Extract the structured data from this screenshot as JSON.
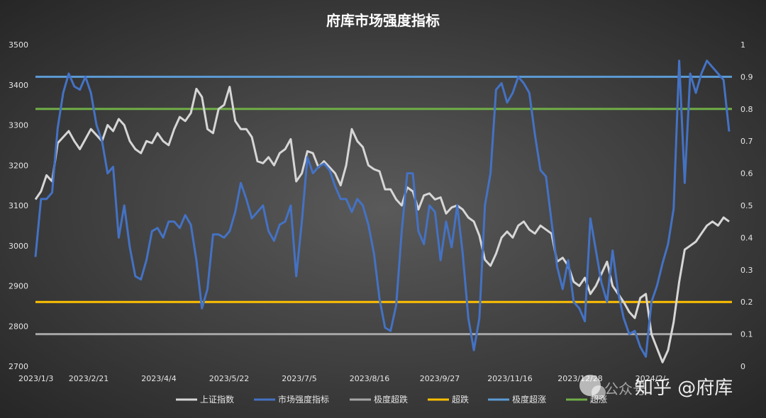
{
  "chart_data": {
    "type": "line",
    "title": "府库市场强度指标",
    "x_tick_labels": [
      "2023/1/3",
      "2023/2/21",
      "2023/4/4",
      "2023/5/22",
      "2023/7/5",
      "2023/8/16",
      "2023/9/27",
      "2023/11/16",
      "2023/12/28",
      "2024/2/"
    ],
    "y_left": {
      "min": 2700,
      "max": 3500,
      "ticks": [
        2700,
        2800,
        2900,
        3000,
        3100,
        3200,
        3300,
        3400,
        3500
      ]
    },
    "y_right": {
      "min": 0,
      "max": 1,
      "ticks": [
        "0",
        "0.1",
        "0.2",
        "0.3",
        "0.4",
        "0.5",
        "0.6",
        "0.7",
        "0.8",
        "0.9",
        "1"
      ]
    },
    "series": [
      {
        "name": "上证指数",
        "axis": "left",
        "color": "#d6d6d6",
        "x": [
          0,
          2,
          4,
          6,
          8,
          10,
          12,
          14,
          16,
          18,
          20,
          22,
          24,
          26,
          28,
          30,
          32,
          34,
          36,
          38,
          40,
          42,
          44,
          46,
          48,
          50,
          52,
          54,
          56,
          58,
          60,
          62,
          64,
          66,
          68,
          70,
          72,
          74,
          76,
          78,
          80,
          82,
          84,
          86,
          88,
          90,
          92,
          94,
          96,
          98,
          100,
          102,
          104,
          106,
          108,
          110,
          112,
          114,
          116,
          118,
          120,
          122,
          124,
          126,
          128,
          130,
          132,
          134,
          136,
          138,
          140,
          142,
          144,
          146,
          148,
          150,
          152,
          154,
          156,
          158,
          160,
          162,
          164,
          166,
          168,
          170,
          172,
          174,
          176,
          178,
          180,
          182,
          184,
          186,
          188,
          190,
          192,
          194,
          196,
          198,
          200,
          202,
          204,
          206,
          208,
          210,
          212,
          214,
          216,
          218,
          220,
          222,
          224,
          226,
          228,
          230,
          232,
          234,
          236,
          238,
          240,
          242,
          244,
          246,
          248,
          250
        ],
        "values": [
          3115,
          3135,
          3175,
          3160,
          3255,
          3270,
          3285,
          3260,
          3240,
          3265,
          3290,
          3275,
          3260,
          3300,
          3285,
          3315,
          3300,
          3260,
          3240,
          3230,
          3260,
          3255,
          3280,
          3260,
          3250,
          3290,
          3320,
          3310,
          3330,
          3390,
          3370,
          3290,
          3280,
          3340,
          3350,
          3395,
          3310,
          3290,
          3290,
          3270,
          3210,
          3205,
          3220,
          3200,
          3230,
          3240,
          3265,
          3160,
          3180,
          3235,
          3230,
          3195,
          3210,
          3195,
          3180,
          3150,
          3200,
          3290,
          3260,
          3245,
          3200,
          3190,
          3185,
          3140,
          3140,
          3115,
          3100,
          3145,
          3135,
          3090,
          3125,
          3130,
          3115,
          3120,
          3080,
          3095,
          3100,
          3090,
          3070,
          3060,
          3025,
          2965,
          2950,
          2980,
          3020,
          3035,
          3020,
          3050,
          3060,
          3040,
          3030,
          3050,
          3040,
          3030,
          2960,
          2970,
          2950,
          2910,
          2900,
          2920,
          2880,
          2900,
          2930,
          2960,
          2900,
          2880,
          2860,
          2835,
          2820,
          2870,
          2880,
          2780,
          2745,
          2710,
          2740,
          2810,
          2910,
          2990,
          3000,
          3010,
          3030,
          3050,
          3060,
          3050,
          3070,
          3060
        ],
        "shown_by_line": true
      },
      {
        "name": "市场强度指标",
        "axis": "right",
        "color": "#4472c4",
        "x": [
          0,
          2,
          4,
          6,
          8,
          10,
          12,
          14,
          16,
          18,
          20,
          22,
          24,
          26,
          28,
          30,
          32,
          34,
          36,
          38,
          40,
          42,
          44,
          46,
          48,
          50,
          52,
          54,
          56,
          58,
          60,
          62,
          64,
          66,
          68,
          70,
          72,
          74,
          76,
          78,
          80,
          82,
          84,
          86,
          88,
          90,
          92,
          94,
          96,
          98,
          100,
          102,
          104,
          106,
          108,
          110,
          112,
          114,
          116,
          118,
          120,
          122,
          124,
          126,
          128,
          130,
          132,
          134,
          136,
          138,
          140,
          142,
          144,
          146,
          148,
          150,
          152,
          154,
          156,
          158,
          160,
          162,
          164,
          166,
          168,
          170,
          172,
          174,
          176,
          178,
          180,
          182,
          184,
          186,
          188,
          190,
          192,
          194,
          196,
          198,
          200,
          202,
          204,
          206,
          208,
          210,
          212,
          214,
          216,
          218,
          220,
          222,
          224,
          226,
          228,
          230,
          232,
          234,
          236,
          238,
          240,
          242,
          244,
          246,
          248,
          250
        ],
        "values": [
          0.34,
          0.52,
          0.52,
          0.54,
          0.74,
          0.85,
          0.91,
          0.87,
          0.86,
          0.9,
          0.85,
          0.75,
          0.7,
          0.6,
          0.62,
          0.4,
          0.5,
          0.37,
          0.28,
          0.27,
          0.33,
          0.42,
          0.43,
          0.4,
          0.45,
          0.45,
          0.43,
          0.47,
          0.44,
          0.33,
          0.18,
          0.24,
          0.41,
          0.41,
          0.4,
          0.42,
          0.48,
          0.57,
          0.52,
          0.46,
          0.48,
          0.5,
          0.42,
          0.39,
          0.44,
          0.45,
          0.5,
          0.28,
          0.45,
          0.65,
          0.6,
          0.62,
          0.63,
          0.61,
          0.56,
          0.52,
          0.52,
          0.48,
          0.52,
          0.5,
          0.44,
          0.35,
          0.21,
          0.12,
          0.11,
          0.19,
          0.42,
          0.6,
          0.6,
          0.42,
          0.38,
          0.5,
          0.48,
          0.33,
          0.45,
          0.37,
          0.5,
          0.35,
          0.15,
          0.05,
          0.15,
          0.5,
          0.6,
          0.86,
          0.88,
          0.82,
          0.85,
          0.9,
          0.88,
          0.85,
          0.72,
          0.61,
          0.59,
          0.45,
          0.31,
          0.24,
          0.33,
          0.2,
          0.18,
          0.14,
          0.46,
          0.36,
          0.26,
          0.2,
          0.36,
          0.23,
          0.15,
          0.1,
          0.11,
          0.06,
          0.03,
          0.2,
          0.25,
          0.32,
          0.38,
          0.49,
          0.95,
          0.57,
          0.91,
          0.85,
          0.91,
          0.95,
          0.93,
          0.91,
          0.89,
          0.73
        ],
        "shown_by_line": true
      },
      {
        "name": "极度超跌",
        "axis": "right",
        "color": "#a6a6a6",
        "level": 0.1
      },
      {
        "name": "超跌",
        "axis": "right",
        "color": "#ffc000",
        "level": 0.2
      },
      {
        "name": "极度超涨",
        "axis": "right",
        "color": "#5b9bd5",
        "level": 0.9
      },
      {
        "name": "超涨",
        "axis": "right",
        "color": "#70ad47",
        "level": 0.8
      }
    ],
    "grid": false,
    "legend_position": "bottom"
  },
  "watermark": {
    "main_text": "知乎 @府库",
    "faint_text": "公众号"
  }
}
